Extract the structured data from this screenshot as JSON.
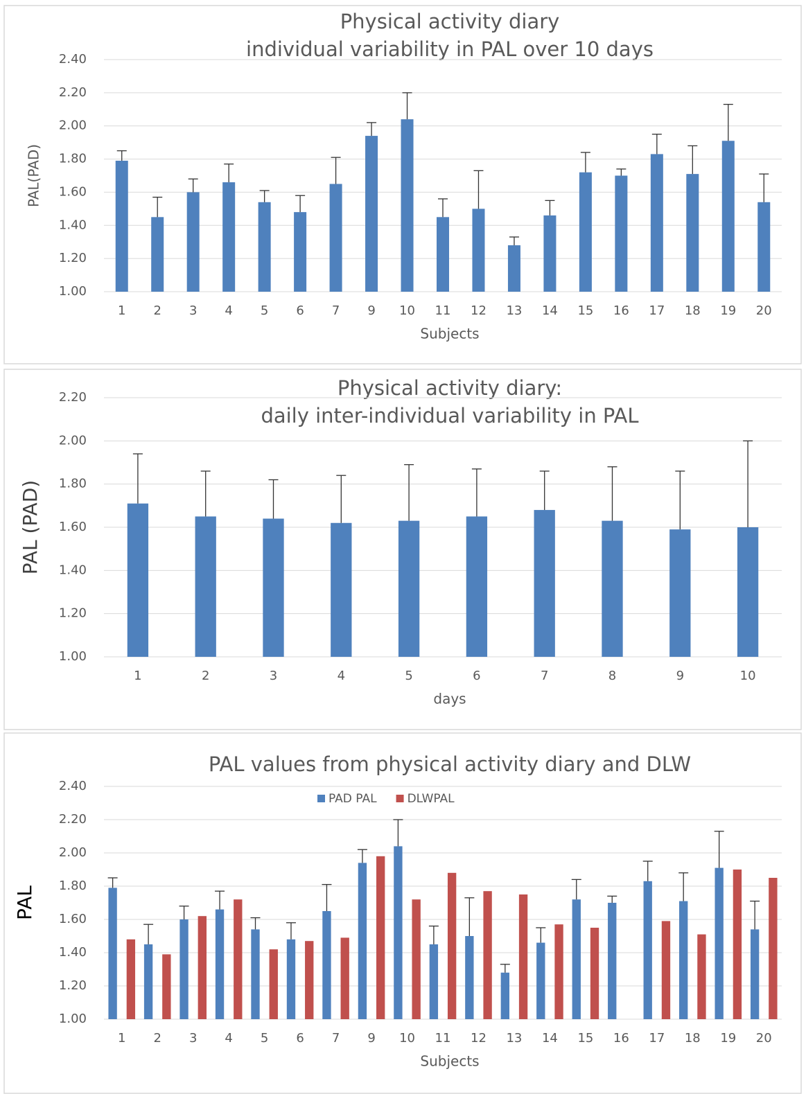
{
  "chart_data": [
    {
      "type": "bar",
      "title": [
        "Physical activity diary",
        "individual variability in PAL over 10 days"
      ],
      "xlabel": "Subjects",
      "ylabel": "PAL(PAD)",
      "categories": [
        "1",
        "2",
        "3",
        "4",
        "5",
        "6",
        "7",
        "9",
        "10",
        "11",
        "12",
        "13",
        "14",
        "15",
        "16",
        "17",
        "18",
        "19",
        "20"
      ],
      "series": [
        {
          "color": "#4f81bd",
          "values": [
            1.79,
            1.45,
            1.6,
            1.66,
            1.54,
            1.48,
            1.65,
            1.94,
            2.04,
            1.45,
            1.5,
            1.28,
            1.46,
            1.72,
            1.7,
            1.83,
            1.71,
            1.91,
            1.54
          ],
          "errors": [
            0.06,
            0.12,
            0.08,
            0.11,
            0.07,
            0.1,
            0.16,
            0.08,
            0.16,
            0.11,
            0.23,
            0.05,
            0.09,
            0.12,
            0.04,
            0.12,
            0.17,
            0.22,
            0.17
          ]
        }
      ],
      "ylim": [
        1.0,
        2.4
      ],
      "yticks": [
        {
          "value": 1.0,
          "label": "1.00"
        },
        {
          "value": 1.2,
          "label": "1.20"
        },
        {
          "value": 1.4,
          "label": "1.40"
        },
        {
          "value": 1.6,
          "label": "1.60"
        },
        {
          "value": 1.8,
          "label": "1.80"
        },
        {
          "value": 2.0,
          "label": "2.00"
        },
        {
          "value": 2.2,
          "label": "2.20"
        },
        {
          "value": 2.4,
          "label": "2.40"
        }
      ],
      "grid": true
    },
    {
      "type": "bar",
      "title": [
        "Physical activity diary:",
        "daily inter-individual variability in PAL"
      ],
      "xlabel": "days",
      "ylabel": "PAL (PAD)",
      "categories": [
        "1",
        "2",
        "3",
        "4",
        "5",
        "6",
        "7",
        "8",
        "9",
        "10"
      ],
      "series": [
        {
          "color": "#4f81bd",
          "values": [
            1.71,
            1.65,
            1.64,
            1.62,
            1.63,
            1.65,
            1.68,
            1.63,
            1.59,
            1.6
          ],
          "errors": [
            0.23,
            0.21,
            0.18,
            0.22,
            0.26,
            0.22,
            0.18,
            0.25,
            0.27,
            0.4
          ]
        }
      ],
      "ylim": [
        1.0,
        2.2
      ],
      "yticks": [
        {
          "value": 1.0,
          "label": "1.00"
        },
        {
          "value": 1.2,
          "label": "1.20"
        },
        {
          "value": 1.4,
          "label": "1.40"
        },
        {
          "value": 1.6,
          "label": "1.60"
        },
        {
          "value": 1.8,
          "label": "1.80"
        },
        {
          "value": 2.0,
          "label": "2.00"
        },
        {
          "value": 2.2,
          "label": "2.20"
        }
      ],
      "grid": true
    },
    {
      "type": "bar",
      "title": [
        "PAL values from physical activity diary  and DLW"
      ],
      "xlabel": "Subjects",
      "ylabel": "PAL",
      "legend": "top",
      "categories": [
        "1",
        "2",
        "3",
        "4",
        "5",
        "6",
        "7",
        "9",
        "10",
        "11",
        "12",
        "13",
        "14",
        "15",
        "16",
        "17",
        "18",
        "19",
        "20"
      ],
      "series": [
        {
          "name": "PAD PAL",
          "color": "#4f81bd",
          "values": [
            1.79,
            1.45,
            1.6,
            1.66,
            1.54,
            1.48,
            1.65,
            1.94,
            2.04,
            1.45,
            1.5,
            1.28,
            1.46,
            1.72,
            1.7,
            1.83,
            1.71,
            1.91,
            1.54
          ],
          "errors": [
            0.06,
            0.12,
            0.08,
            0.11,
            0.07,
            0.1,
            0.16,
            0.08,
            0.16,
            0.11,
            0.23,
            0.05,
            0.09,
            0.12,
            0.04,
            0.12,
            0.17,
            0.22,
            0.17
          ]
        },
        {
          "name": "DLWPAL",
          "color": "#c0504d",
          "values": [
            1.48,
            1.39,
            1.62,
            1.72,
            1.42,
            1.47,
            1.49,
            1.98,
            1.72,
            1.88,
            1.77,
            1.75,
            1.57,
            1.55,
            null,
            1.59,
            1.51,
            1.9,
            1.85
          ]
        }
      ],
      "ylim": [
        1.0,
        2.4
      ],
      "yticks": [
        {
          "value": 1.0,
          "label": "1.00"
        },
        {
          "value": 1.2,
          "label": "1.20"
        },
        {
          "value": 1.4,
          "label": "1.40"
        },
        {
          "value": 1.6,
          "label": "1.60"
        },
        {
          "value": 1.8,
          "label": "1.80"
        },
        {
          "value": 2.0,
          "label": "2.00"
        },
        {
          "value": 2.2,
          "label": "2.20"
        },
        {
          "value": 2.4,
          "label": "2.40"
        }
      ],
      "grid": true
    }
  ]
}
